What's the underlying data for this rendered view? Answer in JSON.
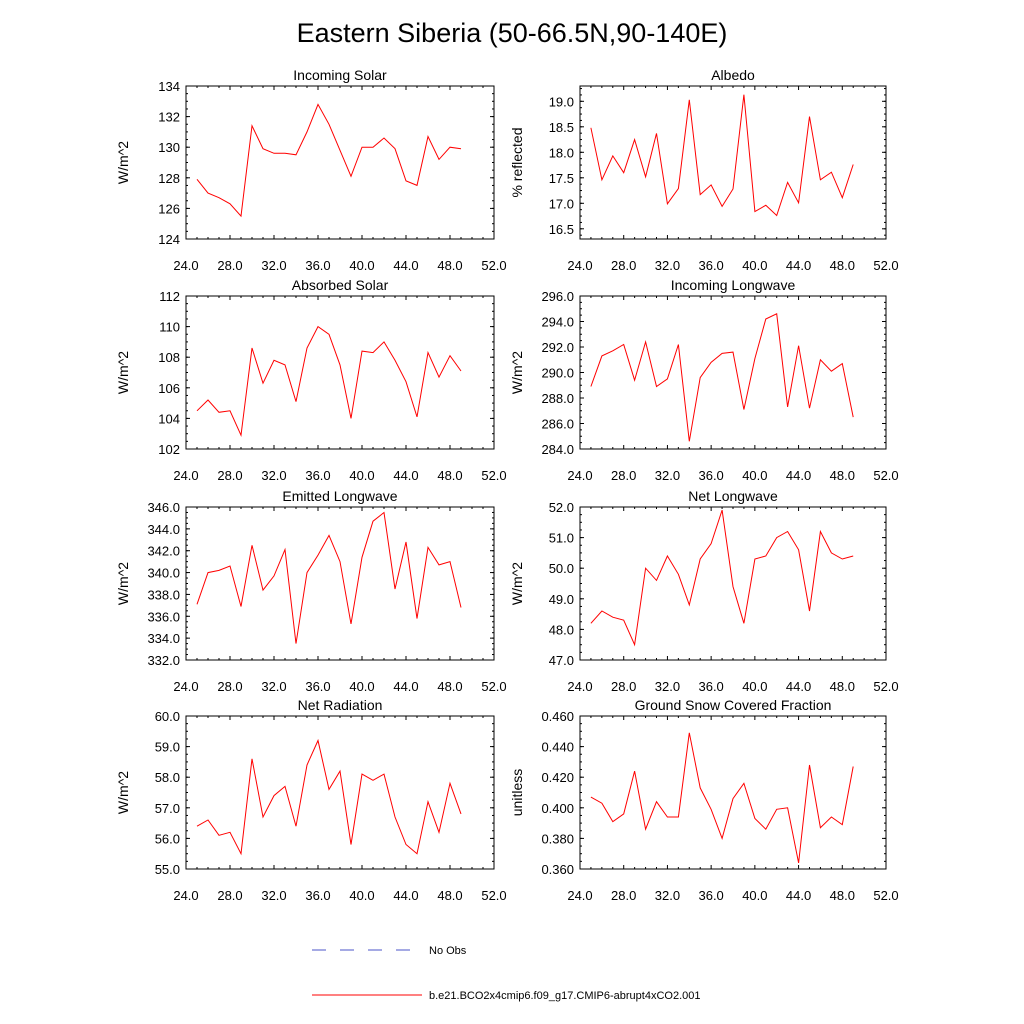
{
  "figure": {
    "title": "Eastern Siberia (50-66.5N,90-140E)"
  },
  "legend": {
    "entries": [
      {
        "label": "No Obs",
        "color": "#4b55c8",
        "dashed": true
      },
      {
        "label": "b.e21.BCO2x4cmip6.f09_g17.CMIP6-abrupt4xCO2.001",
        "color": "#ff0000",
        "dashed": false
      }
    ]
  },
  "chart_data": [
    {
      "type": "line",
      "title": "Incoming Solar",
      "ylabel": "W/m^2",
      "xlim": [
        24,
        52
      ],
      "ylim": [
        124,
        134
      ],
      "xticks": [
        24,
        28,
        32,
        36,
        40,
        44,
        48,
        52
      ],
      "xtick_labels": [
        "24.0",
        "28.0",
        "32.0",
        "36.0",
        "40.0",
        "44.0",
        "48.0",
        "52.0"
      ],
      "yticks": [
        124,
        126,
        128,
        130,
        132,
        134
      ],
      "ytick_labels": [
        "124",
        "126",
        "128",
        "130",
        "132",
        "134"
      ],
      "x": [
        25,
        26,
        27,
        28,
        29,
        30,
        31,
        32,
        33,
        34,
        35,
        36,
        37,
        38,
        39,
        40,
        41,
        42,
        43,
        44,
        45,
        46,
        47,
        48,
        49
      ],
      "series": [
        {
          "name": "b.e21.BCO2x4cmip6.f09_g17.CMIP6-abrupt4xCO2.001",
          "color": "#ff0000",
          "values": [
            127.9,
            127.0,
            126.7,
            126.3,
            125.5,
            131.4,
            129.9,
            129.6,
            129.6,
            129.5,
            131.0,
            132.8,
            131.5,
            129.8,
            128.1,
            130.0,
            130.0,
            130.6,
            129.9,
            127.8,
            127.5,
            130.7,
            129.2,
            130.0,
            129.9
          ]
        }
      ]
    },
    {
      "type": "line",
      "title": "Albedo",
      "ylabel": "% reflected",
      "xlim": [
        24,
        52
      ],
      "ylim": [
        16.3,
        19.3
      ],
      "xticks": [
        24,
        28,
        32,
        36,
        40,
        44,
        48,
        52
      ],
      "xtick_labels": [
        "24.0",
        "28.0",
        "32.0",
        "36.0",
        "40.0",
        "44.0",
        "48.0",
        "52.0"
      ],
      "yticks": [
        16.5,
        17.0,
        17.5,
        18.0,
        18.5,
        19.0
      ],
      "ytick_labels": [
        "16.5",
        "17.0",
        "17.5",
        "18.0",
        "18.5",
        "19.0"
      ],
      "x": [
        25,
        26,
        27,
        28,
        29,
        30,
        31,
        32,
        33,
        34,
        35,
        36,
        37,
        38,
        39,
        40,
        41,
        42,
        43,
        44,
        45,
        46,
        47,
        48,
        49
      ],
      "series": [
        {
          "name": "b.e21.BCO2x4cmip6.f09_g17.CMIP6-abrupt4xCO2.001",
          "color": "#ff0000",
          "values": [
            18.48,
            17.46,
            17.93,
            17.6,
            18.25,
            17.52,
            18.37,
            16.99,
            17.29,
            19.03,
            17.17,
            17.36,
            16.94,
            17.28,
            19.13,
            16.84,
            16.96,
            16.76,
            17.41,
            17.01,
            18.7,
            17.46,
            17.61,
            17.11,
            17.76
          ]
        }
      ]
    },
    {
      "type": "line",
      "title": "Absorbed Solar",
      "ylabel": "W/m^2",
      "xlim": [
        24,
        52
      ],
      "ylim": [
        102,
        112
      ],
      "xticks": [
        24,
        28,
        32,
        36,
        40,
        44,
        48,
        52
      ],
      "xtick_labels": [
        "24.0",
        "28.0",
        "32.0",
        "36.0",
        "40.0",
        "44.0",
        "48.0",
        "52.0"
      ],
      "yticks": [
        102,
        104,
        106,
        108,
        110,
        112
      ],
      "ytick_labels": [
        "102",
        "104",
        "106",
        "108",
        "110",
        "112"
      ],
      "x": [
        25,
        26,
        27,
        28,
        29,
        30,
        31,
        32,
        33,
        34,
        35,
        36,
        37,
        38,
        39,
        40,
        41,
        42,
        43,
        44,
        45,
        46,
        47,
        48,
        49
      ],
      "series": [
        {
          "name": "b.e21.BCO2x4cmip6.f09_g17.CMIP6-abrupt4xCO2.001",
          "color": "#ff0000",
          "values": [
            104.5,
            105.2,
            104.4,
            104.5,
            102.9,
            108.6,
            106.3,
            107.8,
            107.5,
            105.1,
            108.6,
            110.0,
            109.5,
            107.5,
            104.0,
            108.4,
            108.3,
            109.0,
            107.8,
            106.4,
            104.1,
            108.3,
            106.7,
            108.1,
            107.1
          ]
        }
      ]
    },
    {
      "type": "line",
      "title": "Incoming Longwave",
      "ylabel": "W/m^2",
      "xlim": [
        24,
        52
      ],
      "ylim": [
        284,
        296
      ],
      "xticks": [
        24,
        28,
        32,
        36,
        40,
        44,
        48,
        52
      ],
      "xtick_labels": [
        "24.0",
        "28.0",
        "32.0",
        "36.0",
        "40.0",
        "44.0",
        "48.0",
        "52.0"
      ],
      "yticks": [
        284,
        286,
        288,
        290,
        292,
        294,
        296
      ],
      "ytick_labels": [
        "284.0",
        "286.0",
        "288.0",
        "290.0",
        "292.0",
        "294.0",
        "296.0"
      ],
      "x": [
        25,
        26,
        27,
        28,
        29,
        30,
        31,
        32,
        33,
        34,
        35,
        36,
        37,
        38,
        39,
        40,
        41,
        42,
        43,
        44,
        45,
        46,
        47,
        48,
        49
      ],
      "series": [
        {
          "name": "b.e21.BCO2x4cmip6.f09_g17.CMIP6-abrupt4xCO2.001",
          "color": "#ff0000",
          "values": [
            288.9,
            291.3,
            291.7,
            292.2,
            289.4,
            292.4,
            288.9,
            289.5,
            292.2,
            284.6,
            289.6,
            290.8,
            291.5,
            291.6,
            287.1,
            291.1,
            294.2,
            294.6,
            287.3,
            292.1,
            287.2,
            291.0,
            290.1,
            290.7,
            286.5
          ]
        }
      ]
    },
    {
      "type": "line",
      "title": "Emitted Longwave",
      "ylabel": "W/m^2",
      "xlim": [
        24,
        52
      ],
      "ylim": [
        332,
        346
      ],
      "xticks": [
        24,
        28,
        32,
        36,
        40,
        44,
        48,
        52
      ],
      "xtick_labels": [
        "24.0",
        "28.0",
        "32.0",
        "36.0",
        "40.0",
        "44.0",
        "48.0",
        "52.0"
      ],
      "yticks": [
        332,
        334,
        336,
        338,
        340,
        342,
        344,
        346
      ],
      "ytick_labels": [
        "332.0",
        "334.0",
        "336.0",
        "338.0",
        "340.0",
        "342.0",
        "344.0",
        "346.0"
      ],
      "x": [
        25,
        26,
        27,
        28,
        29,
        30,
        31,
        32,
        33,
        34,
        35,
        36,
        37,
        38,
        39,
        40,
        41,
        42,
        43,
        44,
        45,
        46,
        47,
        48,
        49
      ],
      "series": [
        {
          "name": "b.e21.BCO2x4cmip6.f09_g17.CMIP6-abrupt4xCO2.001",
          "color": "#ff0000",
          "values": [
            337.1,
            340.0,
            340.2,
            340.6,
            336.9,
            342.5,
            338.4,
            339.7,
            342.1,
            333.5,
            340.0,
            341.6,
            343.4,
            341.0,
            335.3,
            341.4,
            344.7,
            345.5,
            338.5,
            342.8,
            335.8,
            342.3,
            340.7,
            341.0,
            336.8
          ]
        }
      ]
    },
    {
      "type": "line",
      "title": "Net Longwave",
      "ylabel": "W/m^2",
      "xlim": [
        24,
        52
      ],
      "ylim": [
        47,
        52
      ],
      "xticks": [
        24,
        28,
        32,
        36,
        40,
        44,
        48,
        52
      ],
      "xtick_labels": [
        "24.0",
        "28.0",
        "32.0",
        "36.0",
        "40.0",
        "44.0",
        "48.0",
        "52.0"
      ],
      "yticks": [
        47,
        48,
        49,
        50,
        51,
        52
      ],
      "ytick_labels": [
        "47.0",
        "48.0",
        "49.0",
        "50.0",
        "51.0",
        "52.0"
      ],
      "x": [
        25,
        26,
        27,
        28,
        29,
        30,
        31,
        32,
        33,
        34,
        35,
        36,
        37,
        38,
        39,
        40,
        41,
        42,
        43,
        44,
        45,
        46,
        47,
        48,
        49
      ],
      "series": [
        {
          "name": "b.e21.BCO2x4cmip6.f09_g17.CMIP6-abrupt4xCO2.001",
          "color": "#ff0000",
          "values": [
            48.2,
            48.6,
            48.4,
            48.3,
            47.5,
            50.0,
            49.6,
            50.4,
            49.8,
            48.8,
            50.3,
            50.8,
            51.9,
            49.4,
            48.2,
            50.3,
            50.4,
            51.0,
            51.2,
            50.6,
            48.6,
            51.2,
            50.5,
            50.3,
            50.4
          ]
        }
      ]
    },
    {
      "type": "line",
      "title": "Net Radiation",
      "ylabel": "W/m^2",
      "xlim": [
        24,
        52
      ],
      "ylim": [
        55,
        60
      ],
      "xticks": [
        24,
        28,
        32,
        36,
        40,
        44,
        48,
        52
      ],
      "xtick_labels": [
        "24.0",
        "28.0",
        "32.0",
        "36.0",
        "40.0",
        "44.0",
        "48.0",
        "52.0"
      ],
      "yticks": [
        55,
        56,
        57,
        58,
        59,
        60
      ],
      "ytick_labels": [
        "55.0",
        "56.0",
        "57.0",
        "58.0",
        "59.0",
        "60.0"
      ],
      "x": [
        25,
        26,
        27,
        28,
        29,
        30,
        31,
        32,
        33,
        34,
        35,
        36,
        37,
        38,
        39,
        40,
        41,
        42,
        43,
        44,
        45,
        46,
        47,
        48,
        49
      ],
      "series": [
        {
          "name": "b.e21.BCO2x4cmip6.f09_g17.CMIP6-abrupt4xCO2.001",
          "color": "#ff0000",
          "values": [
            56.4,
            56.6,
            56.1,
            56.2,
            55.5,
            58.6,
            56.7,
            57.4,
            57.7,
            56.4,
            58.4,
            59.2,
            57.6,
            58.2,
            55.8,
            58.1,
            57.9,
            58.1,
            56.7,
            55.8,
            55.5,
            57.2,
            56.2,
            57.8,
            56.8
          ]
        }
      ]
    },
    {
      "type": "line",
      "title": "Ground Snow Covered Fraction",
      "ylabel": "unitless",
      "xlim": [
        24,
        52
      ],
      "ylim": [
        0.36,
        0.46
      ],
      "xticks": [
        24,
        28,
        32,
        36,
        40,
        44,
        48,
        52
      ],
      "xtick_labels": [
        "24.0",
        "28.0",
        "32.0",
        "36.0",
        "40.0",
        "44.0",
        "48.0",
        "52.0"
      ],
      "yticks": [
        0.36,
        0.38,
        0.4,
        0.42,
        0.44,
        0.46
      ],
      "ytick_labels": [
        "0.360",
        "0.380",
        "0.400",
        "0.420",
        "0.440",
        "0.460"
      ],
      "x": [
        25,
        26,
        27,
        28,
        29,
        30,
        31,
        32,
        33,
        34,
        35,
        36,
        37,
        38,
        39,
        40,
        41,
        42,
        43,
        44,
        45,
        46,
        47,
        48,
        49
      ],
      "series": [
        {
          "name": "b.e21.BCO2x4cmip6.f09_g17.CMIP6-abrupt4xCO2.001",
          "color": "#ff0000",
          "values": [
            0.407,
            0.403,
            0.391,
            0.396,
            0.424,
            0.386,
            0.404,
            0.394,
            0.394,
            0.449,
            0.413,
            0.399,
            0.38,
            0.406,
            0.416,
            0.393,
            0.386,
            0.399,
            0.4,
            0.364,
            0.428,
            0.387,
            0.394,
            0.389,
            0.427
          ]
        }
      ]
    }
  ]
}
